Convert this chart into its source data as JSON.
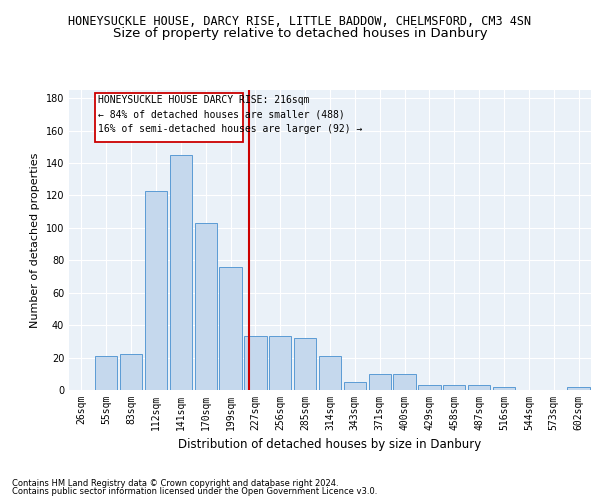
{
  "title1": "HONEYSUCKLE HOUSE, DARCY RISE, LITTLE BADDOW, CHELMSFORD, CM3 4SN",
  "title2": "Size of property relative to detached houses in Danbury",
  "xlabel": "Distribution of detached houses by size in Danbury",
  "ylabel": "Number of detached properties",
  "footer1": "Contains HM Land Registry data © Crown copyright and database right 2024.",
  "footer2": "Contains public sector information licensed under the Open Government Licence v3.0.",
  "bin_labels": [
    "26sqm",
    "55sqm",
    "83sqm",
    "112sqm",
    "141sqm",
    "170sqm",
    "199sqm",
    "227sqm",
    "256sqm",
    "285sqm",
    "314sqm",
    "343sqm",
    "371sqm",
    "400sqm",
    "429sqm",
    "458sqm",
    "487sqm",
    "516sqm",
    "544sqm",
    "573sqm",
    "602sqm"
  ],
  "bar_values": [
    0,
    21,
    22,
    123,
    145,
    103,
    76,
    33,
    33,
    32,
    21,
    5,
    10,
    10,
    3,
    3,
    3,
    2,
    0,
    0,
    2
  ],
  "bar_color": "#c5d8ed",
  "bar_edge_color": "#5b9bd5",
  "vline_x": 6.73,
  "vline_color": "#cc0000",
  "annotation_title": "HONEYSUCKLE HOUSE DARCY RISE: 216sqm",
  "annotation_line1": "← 84% of detached houses are smaller (488)",
  "annotation_line2": "16% of semi-detached houses are larger (92) →",
  "annotation_box_color": "#cc0000",
  "ylim": [
    0,
    185
  ],
  "yticks": [
    0,
    20,
    40,
    60,
    80,
    100,
    120,
    140,
    160,
    180
  ],
  "bg_color": "#eaf1f8",
  "grid_color": "#ffffff",
  "title1_fontsize": 8.5,
  "title2_fontsize": 9.5,
  "annot_fontsize": 7.0,
  "xlabel_fontsize": 8.5,
  "ylabel_fontsize": 8.0,
  "tick_fontsize": 7.0,
  "footer_fontsize": 6.0
}
